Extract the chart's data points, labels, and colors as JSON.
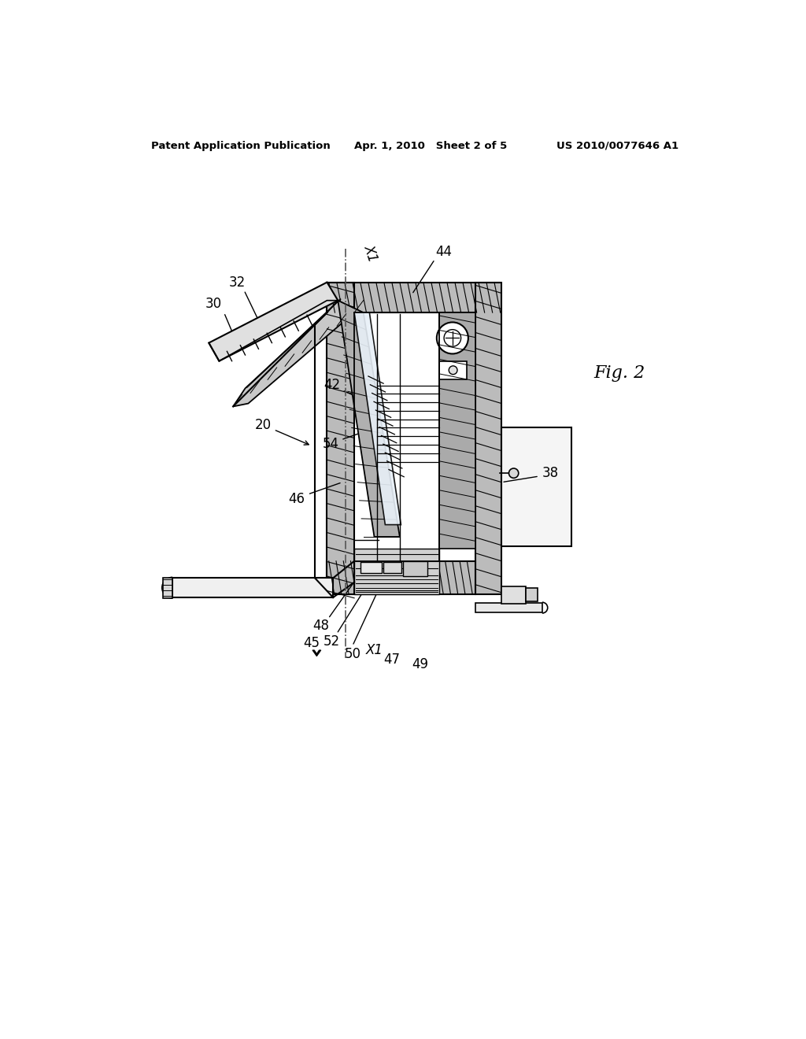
{
  "bg_color": "#ffffff",
  "header_left": "Patent Application Publication",
  "header_center": "Apr. 1, 2010   Sheet 2 of 5",
  "header_right": "US 2010/0077646 A1",
  "fig_label": "Fig. 2",
  "line_color": "#000000",
  "text_color": "#000000"
}
